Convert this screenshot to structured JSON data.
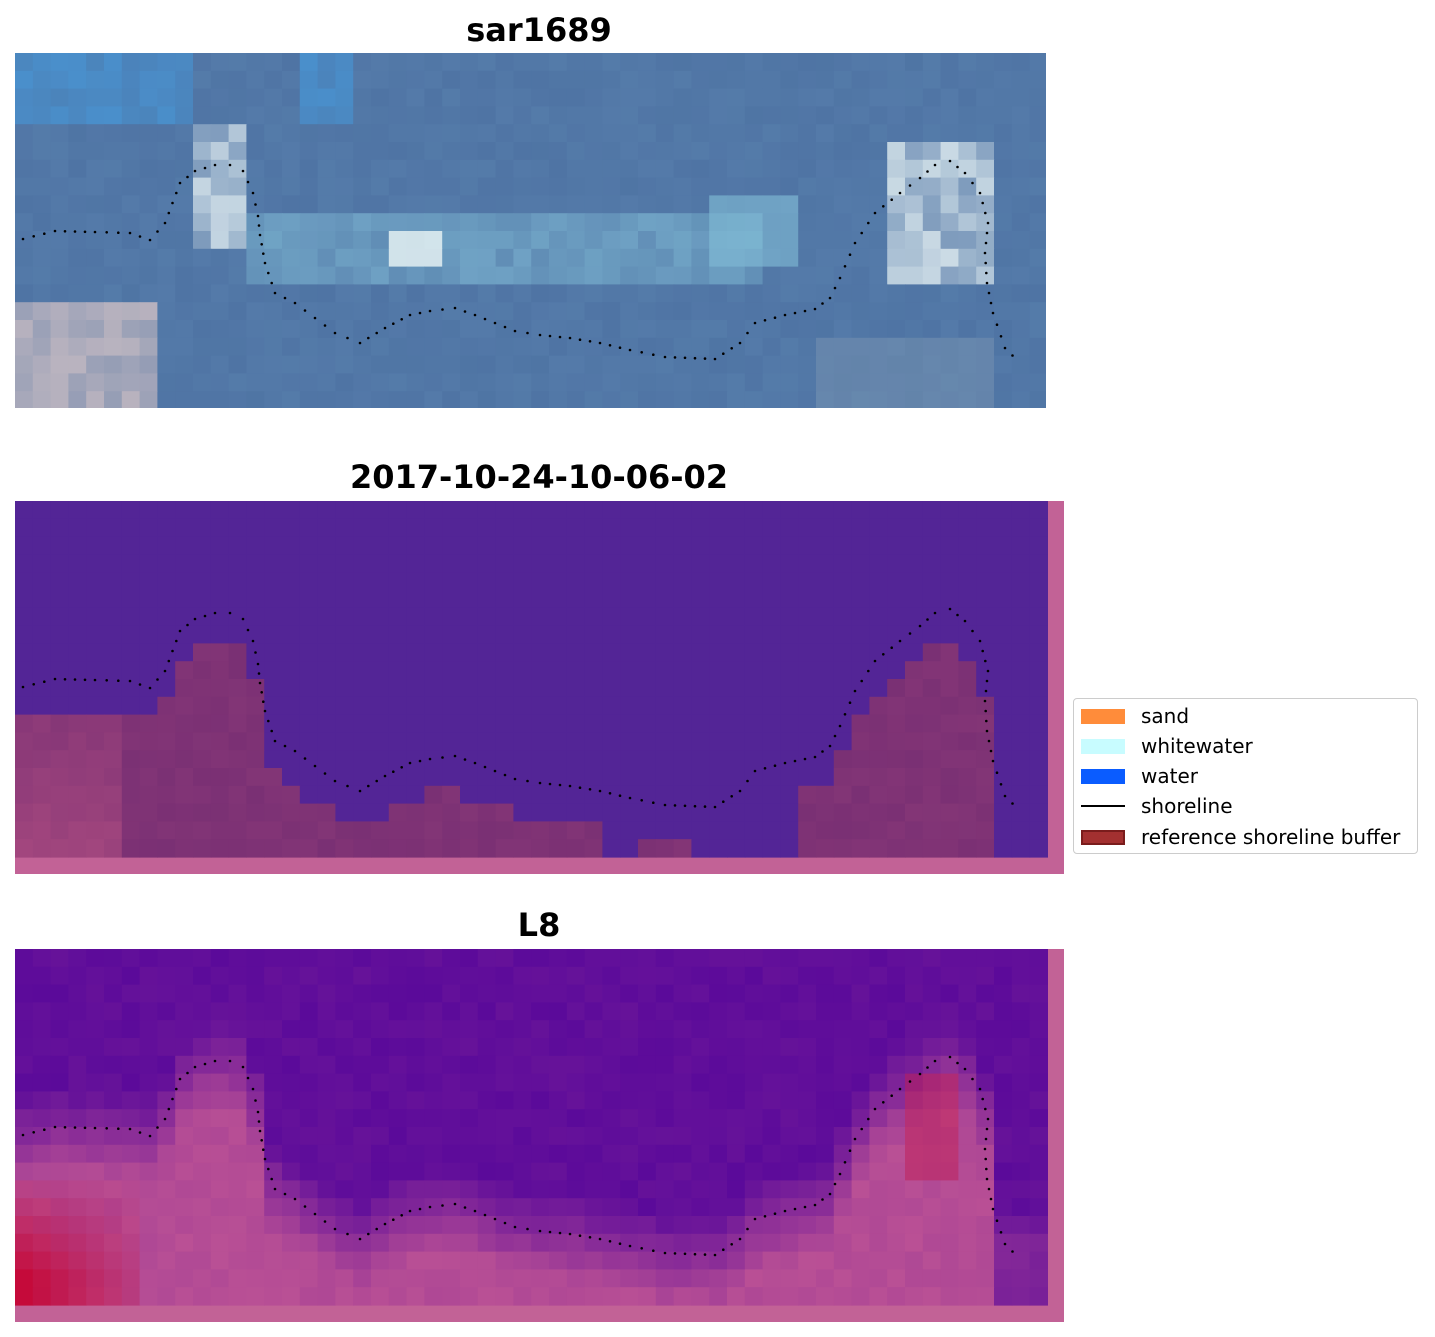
{
  "panels": [
    {
      "title": "sar1689",
      "kind": "rgb"
    },
    {
      "title": "2017-10-24-10-06-02",
      "kind": "classified"
    },
    {
      "title": "L8",
      "kind": "index"
    }
  ],
  "legend": [
    {
      "label": "sand",
      "color": "#ff8c3a",
      "type": "patch"
    },
    {
      "label": "whitewater",
      "color": "#c8fcff",
      "type": "patch"
    },
    {
      "label": "water",
      "color": "#0a5cff",
      "type": "patch"
    },
    {
      "label": "shoreline",
      "color": "#000000",
      "type": "line"
    },
    {
      "label": "reference shoreline buffer",
      "color": "#a33030",
      "type": "patch",
      "edge": "#7a1c1c"
    }
  ],
  "colors": {
    "rgb_base": "#4f74a4",
    "classified_water": "#532596",
    "classified_land": "#7a3074",
    "buffer": "#c26296",
    "index_water": "#5b0a9a",
    "index_land": "#b84f95",
    "index_hot": "#c50a3a"
  }
}
